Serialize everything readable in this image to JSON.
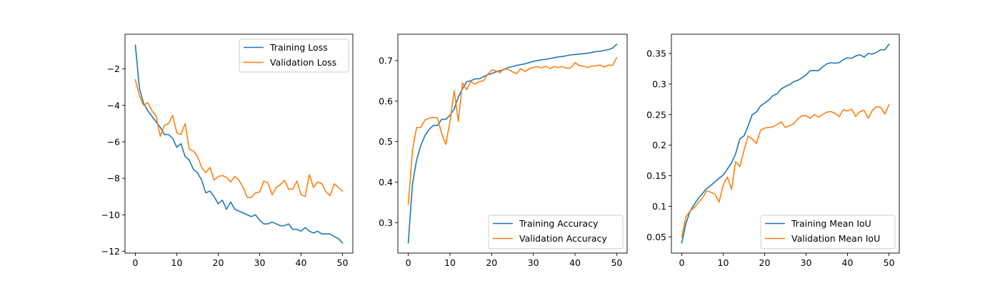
{
  "chart_data": [
    {
      "type": "line",
      "title": "",
      "xlabel": "",
      "ylabel": "",
      "xlim": [
        -2.5,
        52.5
      ],
      "ylim": [
        -12.1,
        -0.1
      ],
      "xticks": [
        0,
        10,
        20,
        30,
        40,
        50
      ],
      "yticks": [
        -12,
        -10,
        -8,
        -6,
        -4,
        -2
      ],
      "grid": false,
      "legend_position": "upper right",
      "series": [
        {
          "name": "Training Loss",
          "color": "#1f77b4",
          "x": [
            0,
            1,
            2,
            3,
            4,
            5,
            6,
            7,
            8,
            9,
            10,
            11,
            12,
            13,
            14,
            15,
            16,
            17,
            18,
            19,
            20,
            21,
            22,
            23,
            24,
            25,
            26,
            27,
            28,
            29,
            30,
            31,
            32,
            33,
            34,
            35,
            36,
            37,
            38,
            39,
            40,
            41,
            42,
            43,
            44,
            45,
            46,
            47,
            48,
            49,
            50
          ],
          "y": [
            -0.7,
            -3.1,
            -3.9,
            -4.3,
            -4.6,
            -4.9,
            -5.2,
            -5.6,
            -5.6,
            -5.8,
            -6.3,
            -6.1,
            -6.8,
            -7.0,
            -7.5,
            -7.7,
            -8.1,
            -8.8,
            -8.7,
            -9.0,
            -9.4,
            -9.2,
            -9.7,
            -9.3,
            -9.7,
            -9.8,
            -9.9,
            -10.0,
            -10.1,
            -10.0,
            -10.3,
            -10.5,
            -10.5,
            -10.4,
            -10.5,
            -10.6,
            -10.6,
            -10.5,
            -10.8,
            -10.8,
            -10.9,
            -10.7,
            -10.9,
            -11.0,
            -10.9,
            -11.05,
            -11.05,
            -11.05,
            -11.2,
            -11.3,
            -11.55
          ]
        },
        {
          "name": "Validation Loss",
          "color": "#ff7f0e",
          "x": [
            0,
            1,
            2,
            3,
            4,
            5,
            6,
            7,
            8,
            9,
            10,
            11,
            12,
            13,
            14,
            15,
            16,
            17,
            18,
            19,
            20,
            21,
            22,
            23,
            24,
            25,
            26,
            27,
            28,
            29,
            30,
            31,
            32,
            33,
            34,
            35,
            36,
            37,
            38,
            39,
            40,
            41,
            42,
            43,
            44,
            45,
            46,
            47,
            48,
            49,
            50
          ],
          "y": [
            -2.6,
            -3.5,
            -4.0,
            -3.85,
            -4.3,
            -4.6,
            -5.7,
            -5.1,
            -5.0,
            -4.55,
            -5.5,
            -5.6,
            -5.0,
            -6.4,
            -6.5,
            -6.8,
            -7.4,
            -7.7,
            -7.4,
            -8.1,
            -7.9,
            -7.85,
            -7.95,
            -8.2,
            -7.9,
            -8.1,
            -8.5,
            -9.05,
            -9.05,
            -8.8,
            -8.75,
            -8.15,
            -8.25,
            -8.9,
            -8.5,
            -8.35,
            -8.1,
            -8.6,
            -8.6,
            -8.15,
            -8.9,
            -9.0,
            -7.8,
            -8.5,
            -8.2,
            -8.3,
            -8.75,
            -8.95,
            -8.3,
            -8.5,
            -8.7
          ]
        }
      ]
    },
    {
      "type": "line",
      "title": "",
      "xlabel": "",
      "ylabel": "",
      "xlim": [
        -2.5,
        52.5
      ],
      "ylim": [
        0.225,
        0.765
      ],
      "xticks": [
        0,
        10,
        20,
        30,
        40,
        50
      ],
      "yticks": [
        0.3,
        0.4,
        0.5,
        0.6,
        0.7
      ],
      "grid": false,
      "legend_position": "lower right",
      "series": [
        {
          "name": "Training Accuracy",
          "color": "#1f77b4",
          "x": [
            0,
            1,
            2,
            3,
            4,
            5,
            6,
            7,
            8,
            9,
            10,
            11,
            12,
            13,
            14,
            15,
            16,
            17,
            18,
            19,
            20,
            21,
            22,
            23,
            24,
            25,
            26,
            27,
            28,
            29,
            30,
            31,
            32,
            33,
            34,
            35,
            36,
            37,
            38,
            39,
            40,
            41,
            42,
            43,
            44,
            45,
            46,
            47,
            48,
            49,
            50
          ],
          "y": [
            0.25,
            0.395,
            0.455,
            0.49,
            0.515,
            0.53,
            0.54,
            0.54,
            0.555,
            0.555,
            0.565,
            0.58,
            0.61,
            0.63,
            0.648,
            0.65,
            0.655,
            0.655,
            0.66,
            0.665,
            0.668,
            0.672,
            0.675,
            0.678,
            0.683,
            0.685,
            0.688,
            0.69,
            0.692,
            0.695,
            0.698,
            0.7,
            0.702,
            0.703,
            0.705,
            0.707,
            0.709,
            0.71,
            0.712,
            0.714,
            0.715,
            0.716,
            0.717,
            0.718,
            0.72,
            0.722,
            0.723,
            0.725,
            0.727,
            0.731,
            0.74
          ]
        },
        {
          "name": "Validation Accuracy",
          "color": "#ff7f0e",
          "x": [
            0,
            1,
            2,
            3,
            4,
            5,
            6,
            7,
            8,
            9,
            10,
            11,
            12,
            13,
            14,
            15,
            16,
            17,
            18,
            19,
            20,
            21,
            22,
            23,
            24,
            25,
            26,
            27,
            28,
            29,
            30,
            31,
            32,
            33,
            34,
            35,
            36,
            37,
            38,
            39,
            40,
            41,
            42,
            43,
            44,
            45,
            46,
            47,
            48,
            49,
            50
          ],
          "y": [
            0.345,
            0.48,
            0.535,
            0.535,
            0.553,
            0.558,
            0.56,
            0.558,
            0.52,
            0.493,
            0.55,
            0.625,
            0.55,
            0.645,
            0.628,
            0.648,
            0.642,
            0.648,
            0.65,
            0.665,
            0.677,
            0.675,
            0.67,
            0.68,
            0.678,
            0.672,
            0.668,
            0.68,
            0.673,
            0.68,
            0.683,
            0.685,
            0.682,
            0.686,
            0.68,
            0.685,
            0.683,
            0.685,
            0.681,
            0.682,
            0.695,
            0.688,
            0.686,
            0.683,
            0.686,
            0.687,
            0.689,
            0.684,
            0.689,
            0.688,
            0.707
          ]
        }
      ]
    },
    {
      "type": "line",
      "title": "",
      "xlabel": "",
      "ylabel": "",
      "xlim": [
        -2.5,
        52.5
      ],
      "ylim": [
        0.0235,
        0.3815
      ],
      "xticks": [
        0,
        10,
        20,
        30,
        40,
        50
      ],
      "yticks": [
        0.05,
        0.1,
        0.15,
        0.2,
        0.25,
        0.3,
        0.35
      ],
      "grid": false,
      "legend_position": "lower right",
      "series": [
        {
          "name": "Training Mean IoU",
          "color": "#1f77b4",
          "x": [
            0,
            1,
            2,
            3,
            4,
            5,
            6,
            7,
            8,
            9,
            10,
            11,
            12,
            13,
            14,
            15,
            16,
            17,
            18,
            19,
            20,
            21,
            22,
            23,
            24,
            25,
            26,
            27,
            28,
            29,
            30,
            31,
            32,
            33,
            34,
            35,
            36,
            37,
            38,
            39,
            40,
            41,
            42,
            43,
            44,
            45,
            46,
            47,
            48,
            49,
            50
          ],
          "y": [
            0.04,
            0.072,
            0.092,
            0.103,
            0.113,
            0.121,
            0.129,
            0.134,
            0.14,
            0.146,
            0.151,
            0.161,
            0.171,
            0.186,
            0.21,
            0.215,
            0.231,
            0.25,
            0.254,
            0.264,
            0.269,
            0.274,
            0.281,
            0.284,
            0.292,
            0.296,
            0.299,
            0.304,
            0.306,
            0.31,
            0.315,
            0.322,
            0.322,
            0.322,
            0.328,
            0.333,
            0.335,
            0.334,
            0.335,
            0.34,
            0.343,
            0.342,
            0.346,
            0.348,
            0.344,
            0.35,
            0.349,
            0.352,
            0.356,
            0.356,
            0.365
          ]
        },
        {
          "name": "Validation Mean IoU",
          "color": "#ff7f0e",
          "x": [
            0,
            1,
            2,
            3,
            4,
            5,
            6,
            7,
            8,
            9,
            10,
            11,
            12,
            13,
            14,
            15,
            16,
            17,
            18,
            19,
            20,
            21,
            22,
            23,
            24,
            25,
            26,
            27,
            28,
            29,
            30,
            31,
            32,
            33,
            34,
            35,
            36,
            37,
            38,
            39,
            40,
            41,
            42,
            43,
            44,
            45,
            46,
            47,
            48,
            49,
            50
          ],
          "y": [
            0.05,
            0.083,
            0.092,
            0.098,
            0.106,
            0.114,
            0.125,
            0.123,
            0.12,
            0.107,
            0.135,
            0.148,
            0.128,
            0.173,
            0.165,
            0.191,
            0.215,
            0.21,
            0.203,
            0.224,
            0.228,
            0.229,
            0.23,
            0.234,
            0.238,
            0.229,
            0.232,
            0.235,
            0.243,
            0.248,
            0.248,
            0.244,
            0.25,
            0.246,
            0.25,
            0.254,
            0.255,
            0.252,
            0.247,
            0.258,
            0.256,
            0.259,
            0.247,
            0.255,
            0.257,
            0.244,
            0.257,
            0.263,
            0.262,
            0.251,
            0.266
          ]
        }
      ]
    }
  ]
}
